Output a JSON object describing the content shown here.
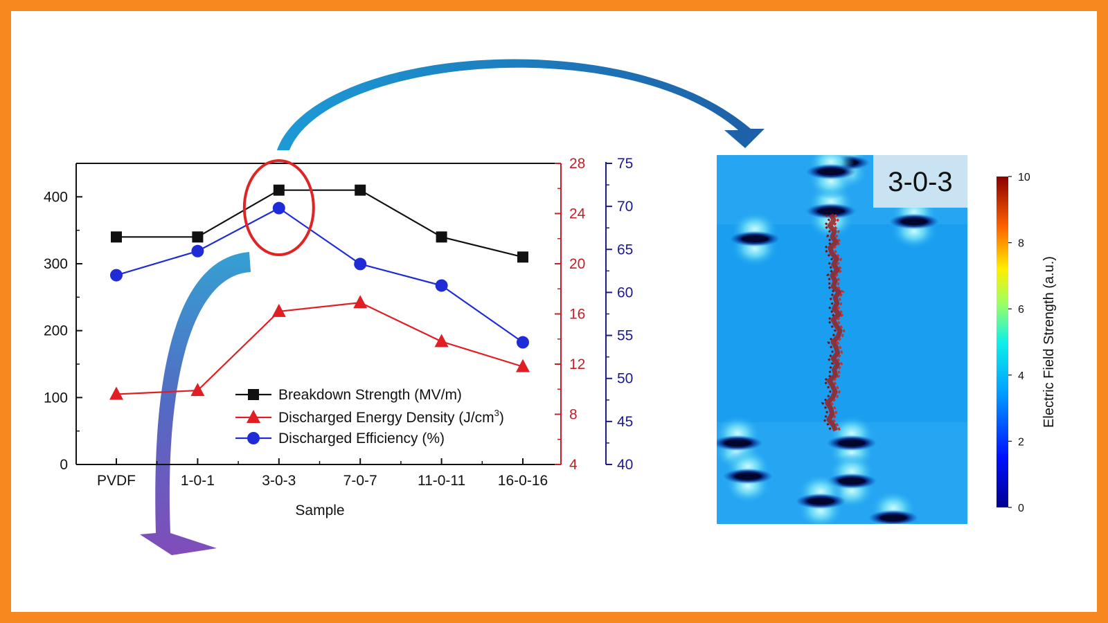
{
  "colors": {
    "frame": "#f7871f",
    "breakdown": "#111111",
    "energy": "#e01e24",
    "efficiency": "#1f2bd6",
    "right_axis_red": "#c21f28",
    "right_axis_blue": "#1a1a8c",
    "highlight": "#e02424",
    "simulation_bg": "#1a9ff0",
    "arrow_top": "#1b89c7",
    "arrow_bottom": "#6a3fb4"
  },
  "chart_data": {
    "type": "line",
    "xlabel": "Sample",
    "categories": [
      "PVDF",
      "1-0-1",
      "3-0-3",
      "7-0-7",
      "11-0-11",
      "16-0-16"
    ],
    "axes": {
      "left": {
        "ylim": [
          0,
          450
        ],
        "ticks": [
          "0",
          "100",
          "200",
          "300",
          "400"
        ]
      },
      "right_red": {
        "ylim": [
          4,
          28
        ],
        "ticks": [
          "4",
          "8",
          "12",
          "16",
          "20",
          "24",
          "28"
        ]
      },
      "right_blue": {
        "ylim": [
          40,
          75
        ],
        "ticks": [
          "40",
          "45",
          "50",
          "55",
          "60",
          "65",
          "70",
          "75"
        ]
      }
    },
    "series": [
      {
        "name": "Breakdown Strength (MV/m)",
        "axis": "left",
        "marker": "square",
        "values": [
          340,
          340,
          410,
          410,
          340,
          310
        ]
      },
      {
        "name": "Discharged Energy Density (J/cm",
        "name_sup": "3",
        "name_end": ")",
        "axis": "right_red",
        "marker": "triangle",
        "values": [
          9.6,
          9.9,
          16.2,
          16.9,
          13.8,
          11.8
        ]
      },
      {
        "name": "Discharged Efficiency (%)",
        "axis": "right_blue",
        "marker": "circle",
        "values": [
          62,
          64.8,
          69.8,
          63.3,
          60.8,
          54.2
        ]
      }
    ],
    "highlight_category": "3-0-3",
    "grid": false,
    "legend": "bottom-center"
  },
  "simulation": {
    "label": "3-0-3",
    "colorbar": {
      "title": "Electric Field Strength (a.u.)",
      "ticks": [
        "0",
        "2",
        "4",
        "6",
        "8",
        "10"
      ]
    }
  }
}
